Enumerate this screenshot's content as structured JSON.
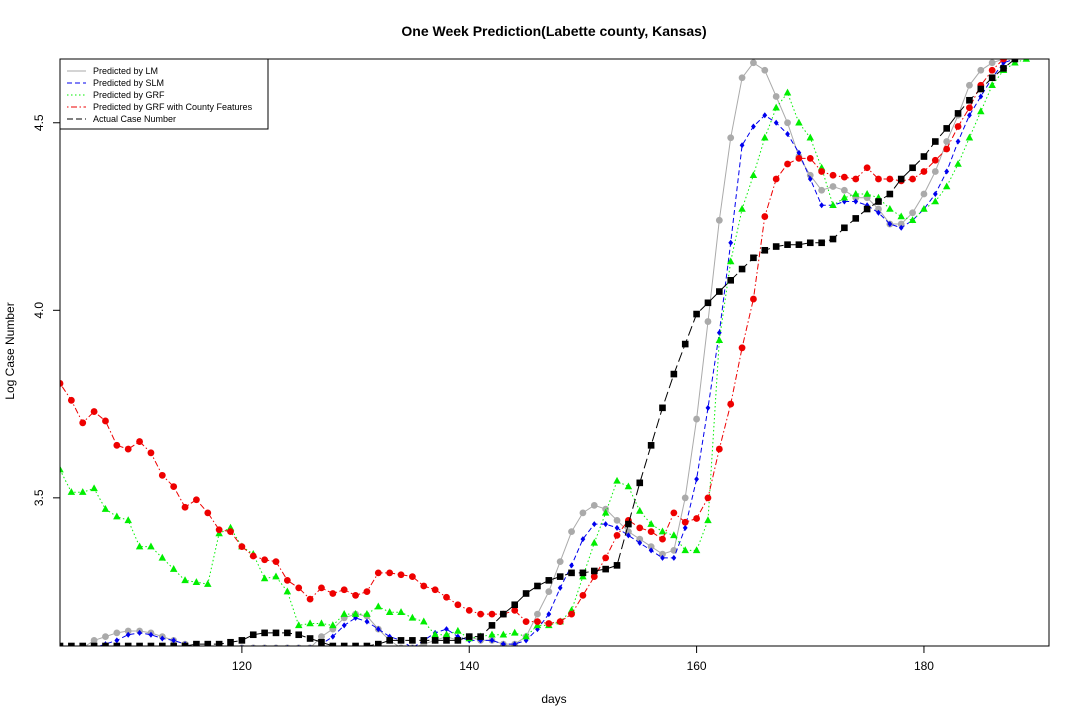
{
  "chart_data": {
    "type": "line",
    "title": "One Week Prediction(Labette county, Kansas)",
    "xlabel": "days",
    "ylabel": "Log Case Number",
    "xlim": [
      104,
      191
    ],
    "ylim": [
      3.105,
      4.67
    ],
    "xticks": [
      120,
      140,
      160,
      180
    ],
    "yticks": [
      3.5,
      4.0,
      4.5
    ],
    "xtick_labels": [
      "120",
      "140",
      "160",
      "180"
    ],
    "ytick_labels": [
      "3.5",
      "4.0",
      "4.5"
    ],
    "grid": false,
    "legend_position": "top-left",
    "x_start": 104,
    "series": [
      {
        "name": "Predicted by LM",
        "color": "#aaaaaa",
        "line": "solid",
        "marker": "circle",
        "values": [
          3.1,
          3.1,
          3.1,
          3.12,
          3.13,
          3.14,
          3.145,
          3.145,
          3.14,
          3.13,
          3.12,
          3.11,
          3.1,
          3.1,
          3.1,
          3.1,
          3.1,
          3.1,
          3.1,
          3.1,
          3.1,
          3.1,
          3.1,
          3.13,
          3.15,
          3.18,
          3.19,
          3.185,
          3.15,
          3.12,
          3.1,
          3.1,
          3.11,
          3.12,
          3.13,
          3.12,
          3.13,
          3.12,
          3.12,
          3.11,
          3.11,
          3.13,
          3.19,
          3.25,
          3.33,
          3.41,
          3.46,
          3.48,
          3.47,
          3.44,
          3.41,
          3.39,
          3.37,
          3.35,
          3.36,
          3.5,
          3.71,
          3.97,
          4.24,
          4.46,
          4.62,
          4.66,
          4.64,
          4.57,
          4.5,
          4.41,
          4.36,
          4.32,
          4.33,
          4.32,
          4.3,
          4.3,
          4.27,
          4.23,
          4.23,
          4.26,
          4.31,
          4.37,
          4.45,
          4.52,
          4.6,
          4.64,
          4.66,
          4.67,
          4.67,
          4.68
        ]
      },
      {
        "name": "Predicted by SLM",
        "color": "#0000ee",
        "line": "dashed",
        "marker": "diamond",
        "values": [
          3.1,
          3.1,
          3.1,
          3.1,
          3.11,
          3.12,
          3.135,
          3.14,
          3.135,
          3.125,
          3.12,
          3.11,
          3.1,
          3.1,
          3.1,
          3.1,
          3.1,
          3.1,
          3.1,
          3.1,
          3.1,
          3.1,
          3.1,
          3.11,
          3.13,
          3.16,
          3.18,
          3.17,
          3.15,
          3.13,
          3.12,
          3.1,
          3.12,
          3.14,
          3.15,
          3.13,
          3.12,
          3.12,
          3.12,
          3.11,
          3.11,
          3.12,
          3.15,
          3.19,
          3.26,
          3.32,
          3.39,
          3.43,
          3.43,
          3.42,
          3.4,
          3.38,
          3.36,
          3.34,
          3.34,
          3.42,
          3.55,
          3.74,
          3.94,
          4.18,
          4.44,
          4.49,
          4.52,
          4.5,
          4.47,
          4.42,
          4.35,
          4.28,
          4.28,
          4.29,
          4.29,
          4.28,
          4.26,
          4.23,
          4.22,
          4.24,
          4.27,
          4.31,
          4.37,
          4.45,
          4.52,
          4.57,
          4.62,
          4.66,
          4.67,
          4.68
        ]
      },
      {
        "name": "Predicted by GRF",
        "color": "#00ee00",
        "line": "dotted",
        "marker": "triangle",
        "values": [
          3.575,
          3.515,
          3.515,
          3.525,
          3.47,
          3.45,
          3.44,
          3.37,
          3.37,
          3.34,
          3.31,
          3.28,
          3.275,
          3.27,
          3.405,
          3.42,
          3.37,
          3.35,
          3.285,
          3.29,
          3.25,
          3.16,
          3.165,
          3.165,
          3.16,
          3.19,
          3.19,
          3.19,
          3.21,
          3.195,
          3.195,
          3.18,
          3.17,
          3.135,
          3.135,
          3.145,
          3.125,
          3.13,
          3.135,
          3.135,
          3.14,
          3.13,
          3.16,
          3.16,
          3.17,
          3.2,
          3.29,
          3.38,
          3.46,
          3.545,
          3.53,
          3.465,
          3.43,
          3.41,
          3.4,
          3.36,
          3.36,
          3.44,
          3.92,
          4.13,
          4.27,
          4.36,
          4.46,
          4.54,
          4.58,
          4.5,
          4.46,
          4.38,
          4.28,
          4.3,
          4.31,
          4.31,
          4.3,
          4.27,
          4.25,
          4.24,
          4.27,
          4.29,
          4.33,
          4.39,
          4.46,
          4.53,
          4.6,
          4.64,
          4.66,
          4.67
        ]
      },
      {
        "name": "Predicted by GRF with County Features",
        "color": "#ee0000",
        "line": "dashdot",
        "marker": "circle",
        "values": [
          3.805,
          3.76,
          3.7,
          3.73,
          3.705,
          3.64,
          3.63,
          3.65,
          3.62,
          3.56,
          3.53,
          3.475,
          3.495,
          3.46,
          3.415,
          3.41,
          3.37,
          3.345,
          3.335,
          3.33,
          3.28,
          3.26,
          3.23,
          3.26,
          3.245,
          3.255,
          3.24,
          3.25,
          3.3,
          3.3,
          3.295,
          3.29,
          3.265,
          3.255,
          3.235,
          3.215,
          3.2,
          3.19,
          3.19,
          3.19,
          3.2,
          3.17,
          3.17,
          3.165,
          3.17,
          3.19,
          3.24,
          3.29,
          3.34,
          3.4,
          3.44,
          3.42,
          3.41,
          3.39,
          3.46,
          3.435,
          3.445,
          3.5,
          3.63,
          3.75,
          3.9,
          4.03,
          4.25,
          4.35,
          4.39,
          4.405,
          4.405,
          4.37,
          4.36,
          4.355,
          4.35,
          4.38,
          4.35,
          4.35,
          4.345,
          4.35,
          4.37,
          4.4,
          4.43,
          4.49,
          4.54,
          4.6,
          4.64,
          4.67,
          4.68,
          4.69
        ]
      },
      {
        "name": "Actual Case Number",
        "color": "#000000",
        "line": "longdash",
        "marker": "square",
        "values": [
          3.105,
          3.105,
          3.105,
          3.105,
          3.105,
          3.105,
          3.105,
          3.105,
          3.105,
          3.105,
          3.105,
          3.105,
          3.11,
          3.11,
          3.11,
          3.115,
          3.12,
          3.135,
          3.14,
          3.14,
          3.14,
          3.135,
          3.125,
          3.115,
          3.105,
          3.105,
          3.105,
          3.105,
          3.11,
          3.12,
          3.12,
          3.12,
          3.12,
          3.12,
          3.12,
          3.12,
          3.13,
          3.13,
          3.16,
          3.19,
          3.215,
          3.245,
          3.265,
          3.28,
          3.29,
          3.3,
          3.3,
          3.305,
          3.31,
          3.32,
          3.43,
          3.54,
          3.64,
          3.74,
          3.83,
          3.91,
          3.99,
          4.02,
          4.05,
          4.08,
          4.11,
          4.14,
          4.16,
          4.17,
          4.175,
          4.175,
          4.18,
          4.18,
          4.19,
          4.22,
          4.245,
          4.27,
          4.29,
          4.31,
          4.35,
          4.38,
          4.41,
          4.45,
          4.485,
          4.525,
          4.56,
          4.59,
          4.62,
          4.645,
          4.67,
          4.695
        ]
      }
    ]
  }
}
